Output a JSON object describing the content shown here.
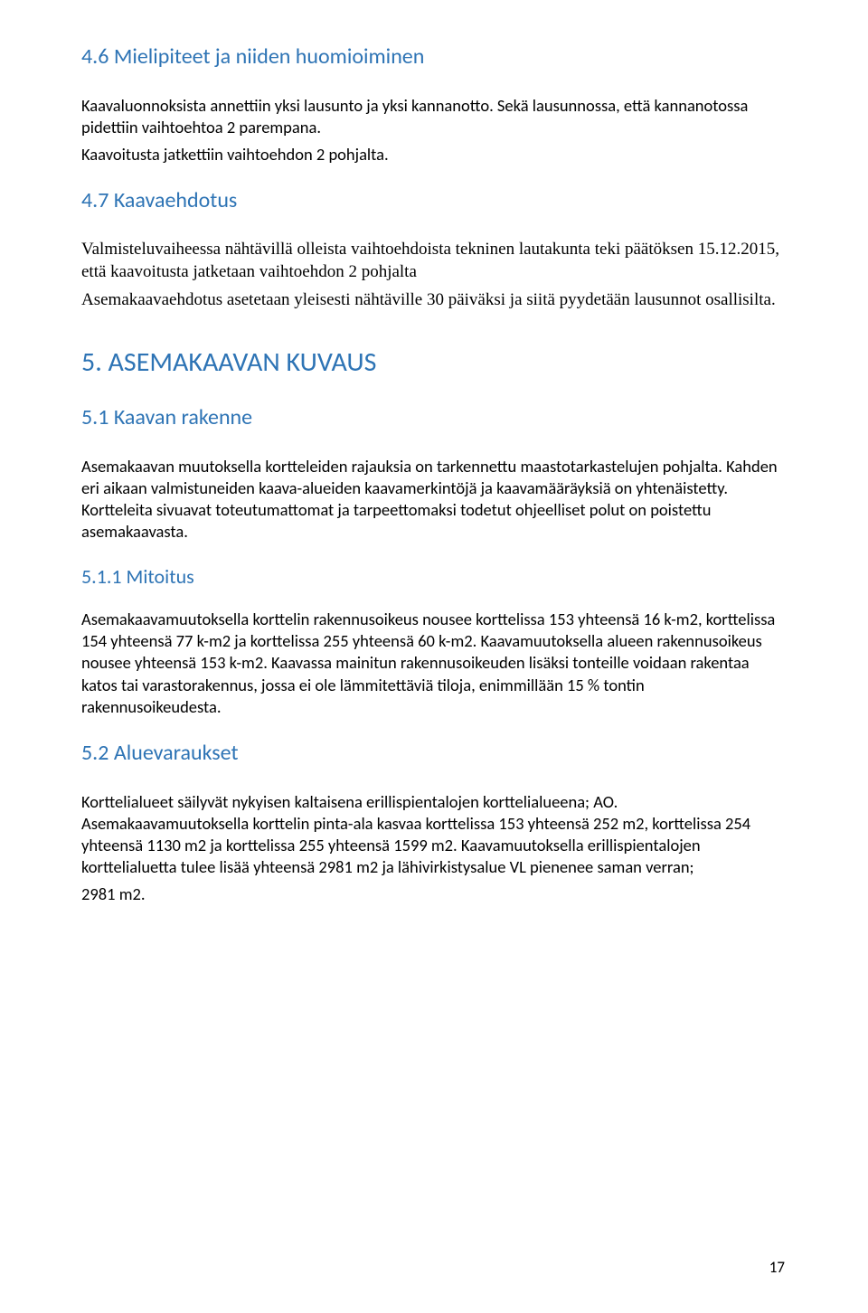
{
  "colors": {
    "heading_blue": "#2e74b5",
    "body_text": "#000000",
    "background": "#ffffff"
  },
  "fonts": {
    "h1_size": 30,
    "h2_size": 24,
    "h3_size": 22,
    "body_size": 18.5,
    "body_line_height": 1.3
  },
  "page_number": "17",
  "sections": {
    "s46": {
      "title": "4.6 Mielipiteet ja niiden huomioiminen",
      "p1": "Kaavaluonnoksista annettiin yksi lausunto ja yksi kannanotto. Sekä lausunnossa, että kannanotossa pidettiin vaihtoehtoa 2 parempana.",
      "p2": "Kaavoitusta jatkettiin vaihtoehdon 2 pohjalta."
    },
    "s47": {
      "title": "4.7 Kaavaehdotus",
      "p1": "Valmisteluvaiheessa nähtävillä olleista vaihtoehdoista tekninen lautakunta teki päätöksen 15.12.2015, että kaavoitusta jatketaan vaihtoehdon 2 pohjalta",
      "p2": "Asemakaavaehdotus asetetaan yleisesti nähtäville 30 päiväksi ja siitä pyydetään lausunnot osallisilta."
    },
    "s5": {
      "title": "5.  ASEMAKAAVAN KUVAUS"
    },
    "s51": {
      "title": "5.1 Kaavan rakenne",
      "p1": "Asemakaavan muutoksella kortteleiden rajauksia on tarkennettu maastotarkastelujen pohjalta. Kahden eri aikaan valmistuneiden kaava-alueiden kaavamerkintöjä ja kaavamääräyksiä on yhtenäistetty. Kortteleita sivuavat toteutumattomat ja tarpeettomaksi todetut ohjeelliset polut on poistettu asemakaavasta."
    },
    "s511": {
      "title": "5.1.1 Mitoitus",
      "p1": "Asemakaavamuutoksella korttelin rakennusoikeus nousee korttelissa 153 yhteensä 16 k-m2, korttelissa 154 yhteensä 77 k-m2 ja korttelissa 255 yhteensä 60 k-m2. Kaavamuutoksella alueen rakennusoikeus nousee yhteensä 153 k-m2. Kaavassa mainitun rakennusoikeuden lisäksi tonteille voidaan rakentaa katos tai varastorakennus, jossa ei ole lämmitettäviä tiloja, enimmillään 15 % tontin rakennusoikeudesta."
    },
    "s52": {
      "title": "5.2 Aluevaraukset",
      "p1": "Korttelialueet säilyvät nykyisen kaltaisena erillispientalojen korttelialueena; AO. Asemakaavamuutoksella korttelin pinta-ala kasvaa korttelissa 153 yhteensä 252 m2, korttelissa 254 yhteensä 1130 m2 ja korttelissa 255 yhteensä 1599 m2.  Kaavamuutoksella erillispientalojen korttelialuetta tulee lisää yhteensä 2981 m2 ja lähivirkistysalue VL pienenee saman verran;",
      "p2": "2981 m2."
    }
  }
}
